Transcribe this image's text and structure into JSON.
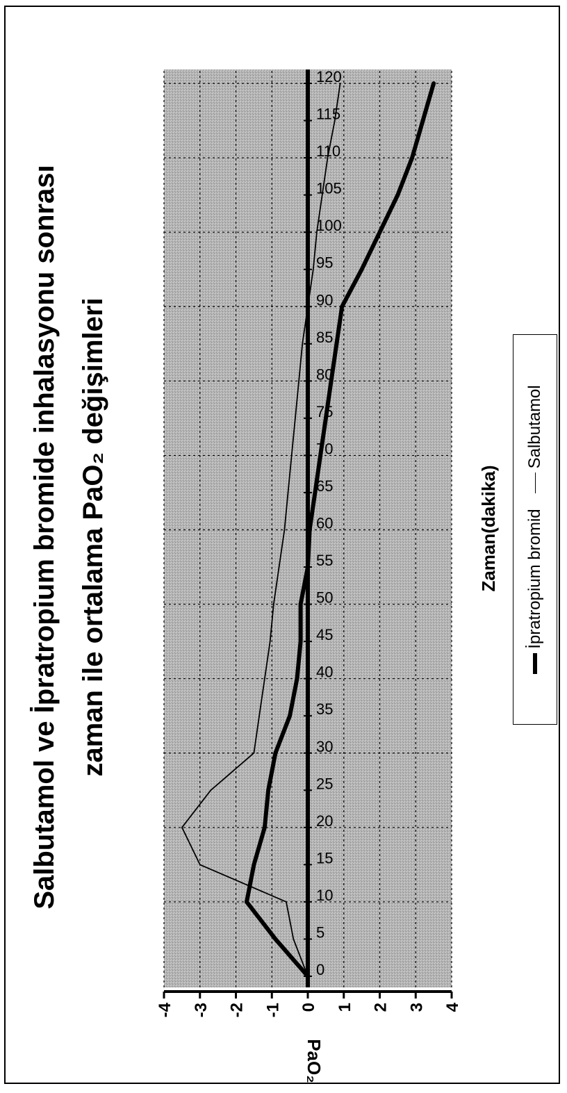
{
  "chart_data": {
    "type": "line",
    "title": "Salbutamol ve İpratropium bromide inhalasyonu sonrası",
    "subtitle": "zaman ile ortalama PaO₂ değişimleri",
    "xlabel": "Zaman(dakika)",
    "ylabel": "PaO₂",
    "ylim": [
      -4,
      4
    ],
    "y_ticks": [
      "4",
      "3",
      "2",
      "1",
      "0",
      "-1",
      "-2",
      "-3",
      "-4"
    ],
    "x": [
      0,
      5,
      10,
      15,
      20,
      25,
      30,
      35,
      40,
      45,
      50,
      55,
      60,
      65,
      70,
      75,
      80,
      85,
      90,
      95,
      100,
      105,
      110,
      115,
      120
    ],
    "x_ticks": [
      "0",
      "5",
      "10",
      "15",
      "20",
      "25",
      "30",
      "35",
      "40",
      "45",
      "50",
      "55",
      "60",
      "65",
      "70",
      "75",
      "80",
      "85",
      "90",
      "95",
      "100",
      "105",
      "110",
      "115",
      "120"
    ],
    "grid": true,
    "legend_position": "bottom",
    "series": [
      {
        "name": "İpratropium bromid",
        "style": "thick",
        "values": [
          0,
          -0.9,
          -1.7,
          -1.5,
          -1.2,
          -1.1,
          -0.9,
          -0.5,
          -0.3,
          -0.2,
          -0.2,
          0,
          0.05,
          0.2,
          0.35,
          0.5,
          0.65,
          0.8,
          0.95,
          1.5,
          2.0,
          2.5,
          2.9,
          3.2,
          3.5
        ]
      },
      {
        "name": "Salbutamol",
        "style": "thin",
        "values": [
          0,
          -0.4,
          -0.6,
          -3.0,
          -3.5,
          -2.7,
          -1.5,
          -1.35,
          -1.2,
          -1.05,
          -0.95,
          -0.8,
          -0.65,
          -0.55,
          -0.45,
          -0.35,
          -0.25,
          -0.15,
          0,
          0.15,
          0.25,
          0.4,
          0.55,
          0.75,
          0.9
        ]
      }
    ]
  },
  "colors": {
    "plot_background": "#b9b9b9",
    "line": "#000000",
    "grid": "#000000"
  }
}
